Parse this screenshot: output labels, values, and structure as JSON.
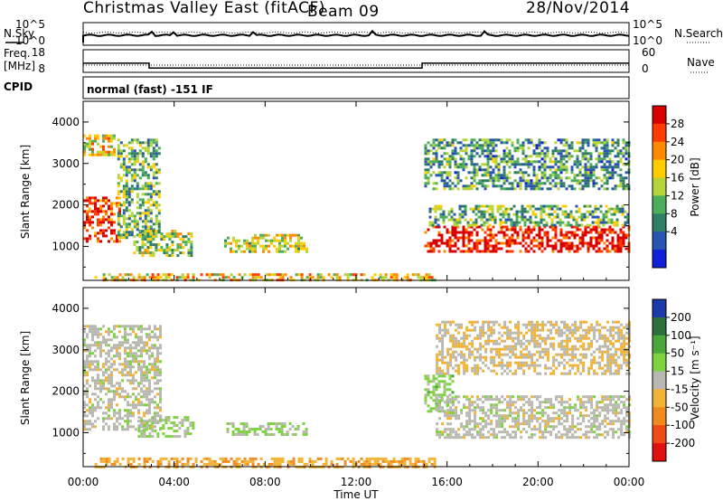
{
  "header": {
    "title": "Christmas Valley East (fitACF)",
    "beam": "Beam 09",
    "date": "28/Nov/2014"
  },
  "top_panels": {
    "nsky_label": "N.Sky",
    "nsky_ticks": [
      "10^5",
      "10^0"
    ],
    "nsearch_label": "N.Search",
    "nsearch_ticks": [
      "10^5",
      "10^0"
    ],
    "freq_label_1": "Freq.",
    "freq_label_2": "[MHz]",
    "freq_ticks": [
      "18",
      "8"
    ],
    "nave_label": "Nave",
    "nave_ticks": [
      "60",
      "0"
    ],
    "cpid_label": "CPID",
    "cpid_text": "normal (fast) -151 IF"
  },
  "power_panel": {
    "ylabel": "Slant Range [km]",
    "colorbar_label": "Power [dB]",
    "colorbar_ticks": [
      "28",
      "24",
      "20",
      "16",
      "12",
      "8",
      "4"
    ],
    "colorbar_colors": [
      "#d90000",
      "#ff3b00",
      "#ff8a00",
      "#ffcc00",
      "#b5d43a",
      "#4cad5a",
      "#2f7d66",
      "#2855b0",
      "#1020d8"
    ]
  },
  "velocity_panel": {
    "ylabel": "Slant Range [km]",
    "colorbar_label": "Velocity [m s⁻¹]",
    "colorbar_ticks": [
      "200",
      "100",
      "50",
      "15",
      "-15",
      "-50",
      "-100",
      "-200"
    ],
    "colorbar_colors": [
      "#1a3aa8",
      "#2e6e3a",
      "#4aa73c",
      "#7ed23f",
      "#b8b8b0",
      "#f2b233",
      "#f08a1f",
      "#ee4b17",
      "#e01010"
    ]
  },
  "y_ticks": [
    "4000",
    "3000",
    "2000",
    "1000"
  ],
  "x_ticks": [
    "00:00",
    "04:00",
    "08:00",
    "12:00",
    "16:00",
    "20:00",
    "00:00"
  ],
  "xlabel": "Time UT",
  "chart_data": {
    "type": "heatmap",
    "x_range_hours": [
      0,
      24
    ],
    "y_range_km": [
      180,
      4500
    ],
    "panels": [
      {
        "name": "Power",
        "units": "dB",
        "color_range": [
          0,
          30
        ],
        "regions": [
          {
            "t_start": 0.0,
            "t_end": 1.6,
            "range_start": 1100,
            "range_end": 2200,
            "value": 26
          },
          {
            "t_start": 0.0,
            "t_end": 1.4,
            "range_start": 3200,
            "range_end": 3700,
            "value": 18
          },
          {
            "t_start": 1.5,
            "t_end": 3.4,
            "range_start": 1200,
            "range_end": 3600,
            "value": 12
          },
          {
            "t_start": 2.2,
            "t_end": 4.8,
            "range_start": 800,
            "range_end": 1400,
            "value": 14
          },
          {
            "t_start": 6.2,
            "t_end": 9.8,
            "range_start": 900,
            "range_end": 1300,
            "value": 16
          },
          {
            "t_start": 0.5,
            "t_end": 15.5,
            "range_start": 200,
            "range_end": 350,
            "value": 18
          },
          {
            "t_start": 15.0,
            "t_end": 24.0,
            "range_start": 900,
            "range_end": 1500,
            "value": 28
          },
          {
            "t_start": 15.2,
            "t_end": 24.0,
            "range_start": 1500,
            "range_end": 2000,
            "value": 12
          },
          {
            "t_start": 15.0,
            "t_end": 24.0,
            "range_start": 2400,
            "range_end": 3600,
            "value": 10
          }
        ]
      },
      {
        "name": "Velocity",
        "units": "m s^-1",
        "color_range": [
          -200,
          200
        ],
        "regions": [
          {
            "t_start": 0.0,
            "t_end": 3.4,
            "range_start": 1100,
            "range_end": 3600,
            "value": 0
          },
          {
            "t_start": 2.4,
            "t_end": 4.9,
            "range_start": 900,
            "range_end": 1400,
            "value": 30
          },
          {
            "t_start": 6.3,
            "t_end": 9.8,
            "range_start": 950,
            "range_end": 1250,
            "value": 30
          },
          {
            "t_start": 0.5,
            "t_end": 15.5,
            "range_start": 200,
            "range_end": 400,
            "value": -60
          },
          {
            "t_start": 15.0,
            "t_end": 16.2,
            "range_start": 1500,
            "range_end": 2400,
            "value": 40
          },
          {
            "t_start": 15.5,
            "t_end": 24.0,
            "range_start": 900,
            "range_end": 1900,
            "value": 0
          },
          {
            "t_start": 15.5,
            "t_end": 24.0,
            "range_start": 2400,
            "range_end": 3700,
            "value": -20
          }
        ]
      }
    ],
    "frequency_mhz": [
      {
        "t_start": 0.0,
        "t_end": 2.9,
        "value": 13.6
      },
      {
        "t_start": 2.9,
        "t_end": 14.9,
        "value": 10.6
      },
      {
        "t_start": 14.9,
        "t_end": 24.0,
        "value": 13.6
      }
    ]
  }
}
